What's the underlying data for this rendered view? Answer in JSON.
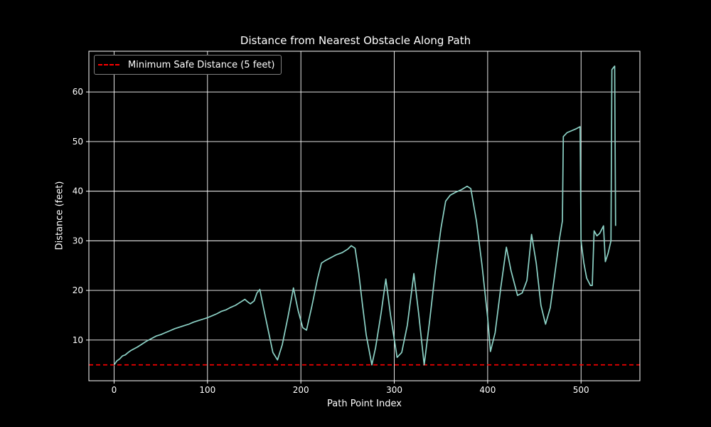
{
  "chart_data": {
    "type": "line",
    "title": "Distance from Nearest Obstacle Along Path",
    "xlabel": "Path Point Index",
    "ylabel": "Distance (feet)",
    "xlim": [
      -27,
      563
    ],
    "ylim": [
      1.8,
      68.2
    ],
    "xticks": [
      0,
      100,
      200,
      300,
      400,
      500
    ],
    "yticks": [
      10,
      20,
      30,
      40,
      50,
      60
    ],
    "grid": true,
    "legend_position": "upper left",
    "background": "#000000",
    "series": [
      {
        "name": "Distance",
        "color": "#8dd3c7",
        "style": "solid",
        "x": [
          0,
          3,
          6,
          9,
          12,
          15,
          18,
          21,
          25,
          30,
          35,
          40,
          45,
          50,
          55,
          60,
          65,
          70,
          75,
          80,
          85,
          90,
          95,
          100,
          105,
          110,
          115,
          120,
          125,
          130,
          135,
          140,
          143,
          146,
          150,
          153,
          156,
          160,
          165,
          170,
          175,
          180,
          186,
          192,
          197,
          202,
          206,
          212,
          218,
          222,
          226,
          232,
          238,
          244,
          250,
          254,
          258,
          262,
          266,
          270,
          276,
          280,
          286,
          291,
          296,
          303,
          308,
          314,
          321,
          326,
          332,
          338,
          344,
          350,
          355,
          360,
          366,
          372,
          378,
          382,
          388,
          394,
          400,
          403,
          408,
          414,
          420,
          425,
          432,
          437,
          442,
          447,
          452,
          457,
          462,
          467,
          472,
          477,
          480,
          481,
          485,
          490,
          495,
          499,
          500,
          503,
          506,
          510,
          512,
          514,
          517,
          520,
          524,
          526,
          529,
          532,
          533,
          536,
          537
        ],
        "values": [
          5.0,
          5.8,
          6.2,
          6.8,
          7.0,
          7.5,
          7.9,
          8.2,
          8.6,
          9.2,
          9.8,
          10.3,
          10.8,
          11.1,
          11.5,
          11.9,
          12.3,
          12.6,
          12.9,
          13.2,
          13.6,
          13.9,
          14.2,
          14.5,
          14.9,
          15.3,
          15.8,
          16.1,
          16.6,
          17.0,
          17.6,
          18.2,
          17.7,
          17.3,
          17.9,
          19.5,
          20.2,
          16.5,
          12.0,
          7.5,
          6.0,
          9.0,
          14.5,
          20.5,
          16.0,
          12.5,
          12.0,
          17.0,
          22.5,
          25.5,
          26.0,
          26.6,
          27.2,
          27.6,
          28.3,
          29.0,
          28.5,
          23.5,
          17.0,
          11.0,
          5.0,
          8.5,
          15.5,
          22.3,
          15.0,
          6.5,
          7.5,
          13.0,
          23.4,
          15.5,
          5.0,
          14.0,
          24.0,
          32.5,
          38.0,
          39.2,
          39.8,
          40.3,
          41.0,
          40.5,
          34.0,
          25.0,
          14.5,
          7.7,
          11.5,
          20.5,
          28.7,
          24.0,
          19.0,
          19.5,
          22.0,
          31.3,
          25.5,
          17.0,
          13.2,
          16.5,
          23.5,
          30.5,
          34.0,
          51.0,
          51.8,
          52.2,
          52.6,
          53.0,
          30.0,
          25.5,
          22.5,
          21.0,
          21.0,
          32.0,
          31.0,
          31.5,
          33.0,
          25.8,
          27.5,
          30.0,
          64.5,
          65.2,
          33.0
        ]
      }
    ],
    "reference_lines": [
      {
        "name": "Minimum Safe Distance (5 feet)",
        "y": 5,
        "color": "#ff0000",
        "style": "dashed"
      }
    ]
  },
  "legend": {
    "items": [
      {
        "label": "Minimum Safe Distance (5 feet)",
        "color": "#ff0000",
        "style": "dashed"
      }
    ]
  }
}
